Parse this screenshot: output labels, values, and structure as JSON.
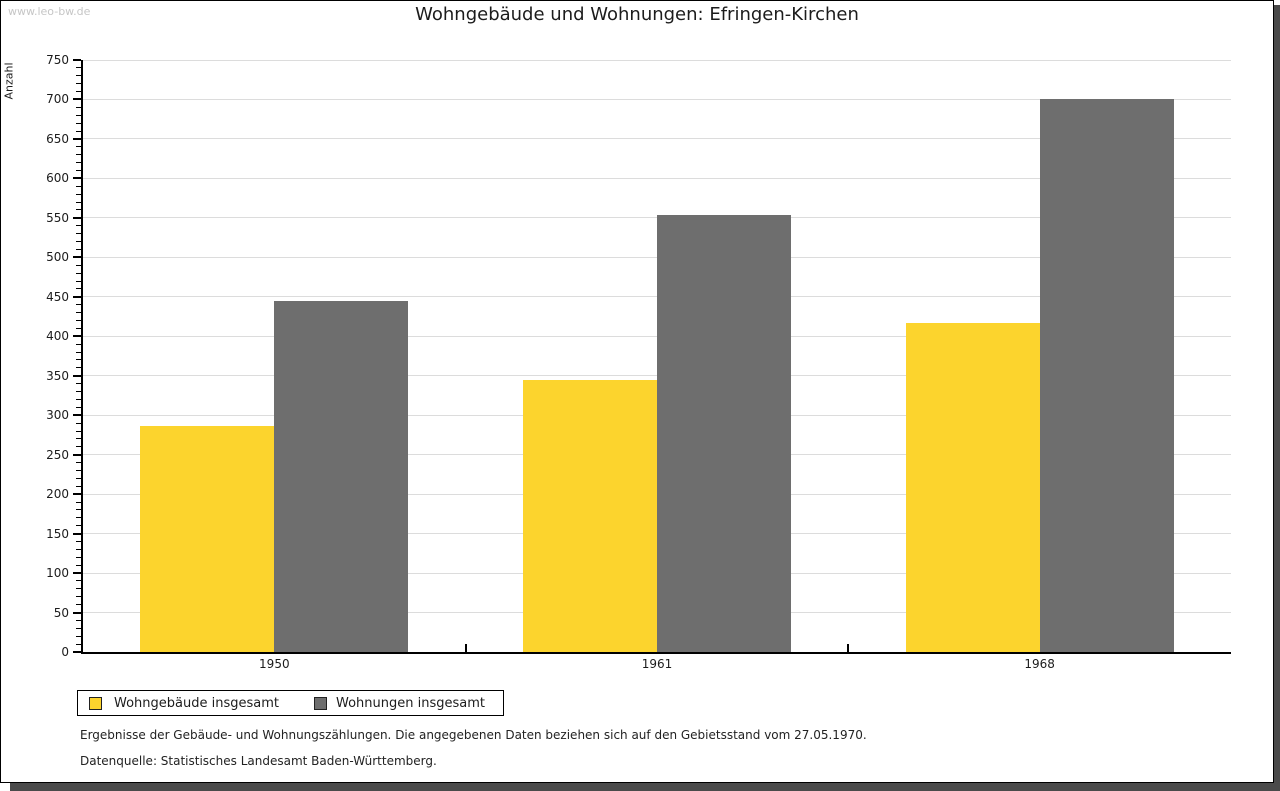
{
  "watermark": "www.leo-bw.de",
  "title": "Wohngebäude und Wohnungen: Efringen-Kirchen",
  "chart_data": {
    "type": "bar",
    "title": "Wohngebäude und Wohnungen: Efringen-Kirchen",
    "categories": [
      "1950",
      "1961",
      "1968"
    ],
    "series": [
      {
        "name": "Wohngebäude insgesamt",
        "color": "#FCD42D",
        "values": [
          286,
          345,
          417
        ]
      },
      {
        "name": "Wohnungen insgesamt",
        "color": "#6E6E6E",
        "values": [
          445,
          554,
          700
        ]
      }
    ],
    "xlabel": "",
    "ylabel": "Anzahl",
    "ylim": [
      0,
      750
    ],
    "y_major_step": 50,
    "y_minor_step": 10,
    "grid": "horizontal-major-on",
    "legend_position": "bottom-left"
  },
  "footnotes": {
    "line1": "Ergebnisse der Gebäude- und Wohnungszählungen. Die angegebenen Daten beziehen sich auf den Gebietsstand vom 27.05.1970.",
    "line2": "Datenquelle: Statistisches Landesamt Baden-Württemberg."
  },
  "colors": {
    "bar_yellow": "#FCD42D",
    "bar_gray": "#6E6E6E",
    "gridline": "#dcdcdc",
    "axis": "#000000",
    "frame_shadow": "#4a4a4a",
    "watermark": "#c6c6c6"
  }
}
